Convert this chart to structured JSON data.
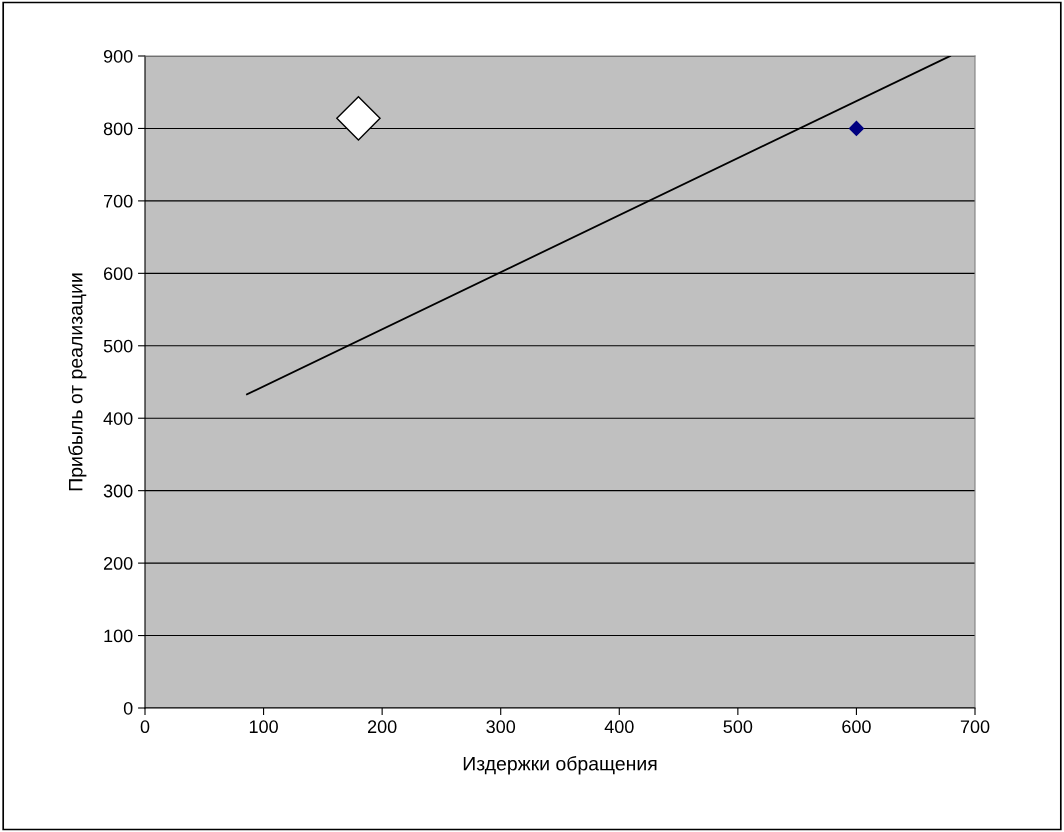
{
  "chart_data": {
    "type": "scatter",
    "xlabel": "Издержки обращения",
    "ylabel": "Прибыль от реализации",
    "xlim": [
      0,
      700
    ],
    "xticks": [
      0,
      100,
      200,
      300,
      400,
      500,
      600,
      700
    ],
    "ylim": [
      0,
      900
    ],
    "yticks": [
      0,
      100,
      200,
      300,
      400,
      500,
      600,
      700,
      800,
      900
    ],
    "grid": "y",
    "legend": false,
    "marker": "diamond",
    "series": [
      {
        "color": "#000080",
        "x": [
          600
        ],
        "values": [
          800
        ]
      },
      {
        "color": "#ffffff",
        "x": [
          180
        ],
        "values": [
          814
        ]
      },
      {
        "type": "line",
        "color": "#000000",
        "x": [
          86,
          679
        ],
        "values": [
          433,
          900
        ],
        "marker": "none"
      }
    ]
  }
}
